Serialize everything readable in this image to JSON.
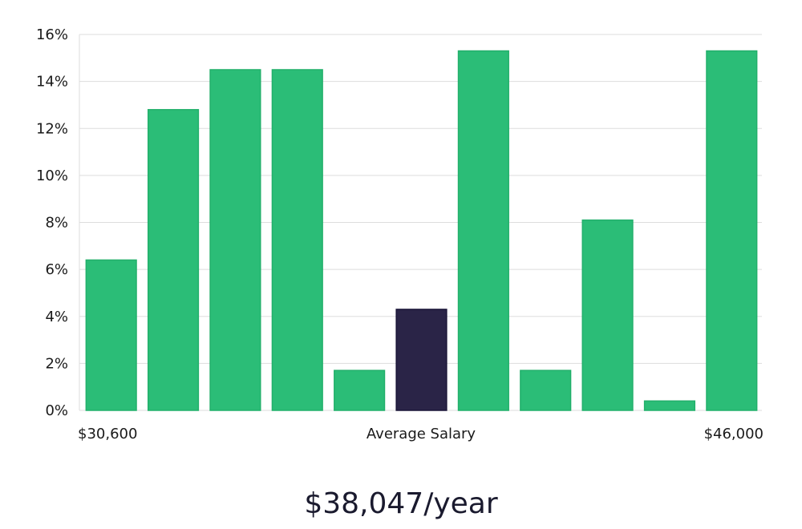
{
  "chart_data": {
    "type": "bar",
    "categories": [
      "$30,600",
      "",
      "",
      "",
      "",
      "Average Salary",
      "",
      "",
      "",
      "",
      "$46,000"
    ],
    "values": [
      6.4,
      12.8,
      14.5,
      14.5,
      1.7,
      4.3,
      15.3,
      1.7,
      8.1,
      0.4,
      15.3
    ],
    "highlight_index": 5,
    "y_ticks": [
      "0%",
      "2%",
      "4%",
      "6%",
      "8%",
      "10%",
      "12%",
      "14%",
      "16%"
    ],
    "ylim": [
      0,
      16
    ],
    "x_labels": {
      "left": "$30,600",
      "center": "Average Salary",
      "right": "$46,000"
    },
    "grid": true,
    "colors": {
      "bar": "#2bbd77",
      "bar_edge": "#22b06b",
      "highlight": "#2a2447",
      "grid": "#dddddd"
    }
  },
  "summary": "$38,047/year"
}
